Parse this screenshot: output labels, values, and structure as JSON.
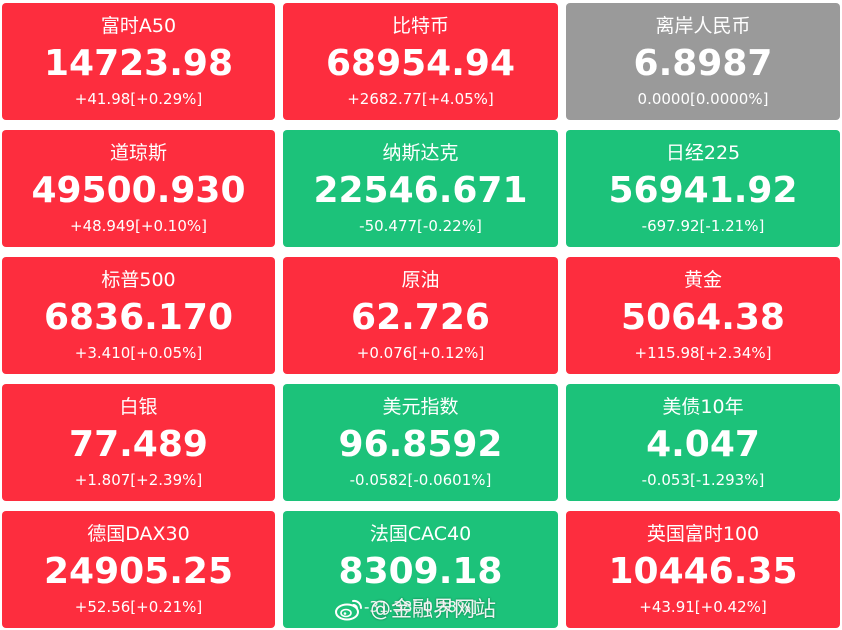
{
  "colors": {
    "up": "#fd2d3e",
    "down": "#1cc27a",
    "flat": "#9a9a9a",
    "text": "#ffffff"
  },
  "tiles": [
    {
      "name": "富时A50",
      "price": "14723.98",
      "change": "+41.98[+0.29%]",
      "trend": "up"
    },
    {
      "name": "比特币",
      "price": "68954.94",
      "change": "+2682.77[+4.05%]",
      "trend": "up"
    },
    {
      "name": "离岸人民币",
      "price": "6.8987",
      "change": "0.0000[0.0000%]",
      "trend": "flat"
    },
    {
      "name": "道琼斯",
      "price": "49500.930",
      "change": "+48.949[+0.10%]",
      "trend": "up"
    },
    {
      "name": "纳斯达克",
      "price": "22546.671",
      "change": "-50.477[-0.22%]",
      "trend": "down"
    },
    {
      "name": "日经225",
      "price": "56941.92",
      "change": "-697.92[-1.21%]",
      "trend": "down"
    },
    {
      "name": "标普500",
      "price": "6836.170",
      "change": "+3.410[+0.05%]",
      "trend": "up"
    },
    {
      "name": "原油",
      "price": "62.726",
      "change": "+0.076[+0.12%]",
      "trend": "up"
    },
    {
      "name": "黄金",
      "price": "5064.38",
      "change": "+115.98[+2.34%]",
      "trend": "up"
    },
    {
      "name": "白银",
      "price": "77.489",
      "change": "+1.807[+2.39%]",
      "trend": "up"
    },
    {
      "name": "美元指数",
      "price": "96.8592",
      "change": "-0.0582[-0.0601%]",
      "trend": "down"
    },
    {
      "name": "美债10年",
      "price": "4.047",
      "change": "-0.053[-1.293%]",
      "trend": "down"
    },
    {
      "name": "德国DAX30",
      "price": "24905.25",
      "change": "+52.56[+0.21%]",
      "trend": "up"
    },
    {
      "name": "法国CAC40",
      "price": "8309.18",
      "change": "-31.38[-0.38%]",
      "trend": "down"
    },
    {
      "name": "英国富时100",
      "price": "10446.35",
      "change": "+43.91[+0.42%]",
      "trend": "up"
    }
  ],
  "watermark": {
    "icon": "weibo-icon",
    "text": "@金融界网站"
  }
}
